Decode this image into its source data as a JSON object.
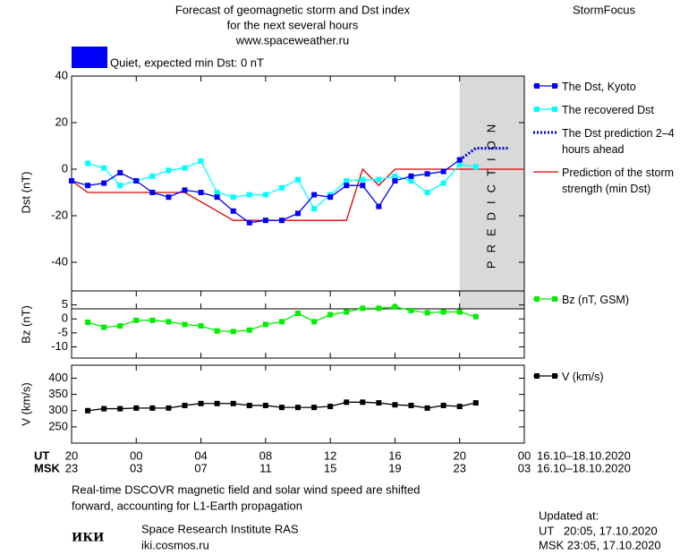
{
  "header": {
    "title_lines": [
      "Forecast of geomagnetic storm and Dst index",
      "for the next several hours",
      "www.spaceweather.ru"
    ],
    "brand": "StormFocus"
  },
  "status": {
    "color": "#0000ff",
    "text": "Quiet, expected min Dst: 0 nT"
  },
  "chart_data": [
    {
      "type": "line",
      "ylabel": "Dst (nT)",
      "ylim": [
        -60,
        40
      ],
      "yticks": [
        -40,
        -20,
        0,
        20,
        40
      ],
      "prediction_zone": {
        "x": [
          24,
          28
        ],
        "label": "PREDICTION"
      },
      "series": [
        {
          "name": "The Dst, Kyoto",
          "color": "#0000ff",
          "marker": "square",
          "x": [
            0,
            1,
            2,
            3,
            4,
            5,
            6,
            7,
            8,
            9,
            10,
            11,
            12,
            13,
            14,
            15,
            16,
            17,
            18,
            19,
            20,
            21,
            22,
            23,
            24
          ],
          "values": [
            -5,
            -7,
            -6,
            -1.5,
            -5,
            -10,
            -12,
            -9,
            -10,
            -12,
            -18,
            -23,
            -22,
            -22,
            -19,
            -11,
            -12,
            -7,
            -7,
            -16,
            -5,
            -3,
            -2,
            -1,
            4
          ]
        },
        {
          "name": "The recovered Dst",
          "color": "#00ffff",
          "marker": "square",
          "x": [
            1,
            2,
            3,
            4,
            5,
            6,
            7,
            8,
            9,
            10,
            11,
            12,
            13,
            14,
            15,
            16,
            17,
            18,
            19,
            20,
            21,
            22,
            23,
            24,
            25
          ],
          "values": [
            2.5,
            0.5,
            -7,
            -5,
            -3,
            -0.5,
            0.5,
            3.5,
            -10,
            -12,
            -11,
            -11,
            -8,
            -4.5,
            -17,
            -11,
            -5,
            -4.5,
            -4.5,
            -3,
            -5,
            -10,
            -6,
            2,
            1
          ]
        },
        {
          "name": "The Dst prediction 2–4 hours ahead",
          "color": "#0000cc",
          "dash": "2,2",
          "x": [
            24,
            25,
            26,
            27
          ],
          "values": [
            4,
            9,
            9,
            9
          ]
        },
        {
          "name": "Prediction of the storm strength (min Dst)",
          "color": "#dd0000",
          "x": [
            0,
            1,
            7,
            8,
            9,
            10,
            17,
            18,
            19,
            20,
            28
          ],
          "values": [
            -5,
            -10,
            -10,
            -14,
            -18,
            -22,
            -22,
            0,
            -7,
            0,
            0
          ]
        }
      ]
    },
    {
      "type": "line",
      "ylabel": "Bz (nT)",
      "ylim": [
        -14,
        10
      ],
      "yticks": [
        -10,
        -5,
        0,
        5
      ],
      "series": [
        {
          "name": "Bz (nT, GSM)",
          "color": "#00ee00",
          "marker": "square",
          "x": [
            1,
            2,
            3,
            4,
            5,
            6,
            7,
            8,
            9,
            10,
            11,
            12,
            13,
            14,
            15,
            16,
            17,
            18,
            19,
            20,
            21,
            22,
            23,
            24,
            25
          ],
          "values": [
            -1.2,
            -3,
            -2.5,
            -0.5,
            -0.5,
            -1,
            -2,
            -2.5,
            -4.3,
            -4.5,
            -4,
            -2,
            -1,
            2,
            -1,
            1.5,
            2.5,
            3.8,
            3.8,
            4.3,
            3,
            2.2,
            2.5,
            2.5,
            0.8
          ]
        }
      ]
    },
    {
      "type": "line",
      "ylabel": "V (km/s)",
      "ylim": [
        200,
        440
      ],
      "yticks": [
        250,
        300,
        350,
        400
      ],
      "xlim": [
        0,
        28
      ],
      "xticks": [
        {
          "value": 0,
          "label": "20"
        },
        {
          "value": 4,
          "label": "00"
        },
        {
          "value": 8,
          "label": "04"
        },
        {
          "value": 12,
          "label": "08"
        },
        {
          "value": 16,
          "label": "12"
        },
        {
          "value": 20,
          "label": "16"
        },
        {
          "value": 24,
          "label": "20"
        },
        {
          "value": 28,
          "label": "00"
        }
      ],
      "xtick_labels_msk": [
        "23",
        "03",
        "07",
        "11",
        "15",
        "19",
        "23",
        "03"
      ],
      "row_labels": [
        "UT",
        "MSK"
      ],
      "date_range": [
        "16.10–18.10.2020",
        "16.10–18.10.2020"
      ],
      "series": [
        {
          "name": "V (km/s)",
          "color": "#000000",
          "marker": "square",
          "x": [
            1,
            2,
            3,
            4,
            5,
            6,
            7,
            8,
            9,
            10,
            11,
            12,
            13,
            14,
            15,
            16,
            17,
            18,
            19,
            20,
            21,
            22,
            23,
            24,
            25
          ],
          "values": [
            300,
            306,
            306,
            308,
            308,
            308,
            316,
            322,
            322,
            322,
            316,
            316,
            310,
            310,
            310,
            313,
            326,
            326,
            324,
            318,
            316,
            308,
            316,
            313,
            324
          ]
        }
      ]
    }
  ],
  "footer": {
    "note": [
      "Real-time DSCOVR magnetic field and solar wind speed are shifted",
      "forward, accounting for L1-Earth propagation"
    ],
    "logo": "ИКИ",
    "institute": "Space Research Institute RAS",
    "site": "iki.cosmos.ru",
    "updated_label": "Updated at:",
    "updated_ut": "UT   20:05, 17.10.2020",
    "updated_msk": "MSK 23:05, 17.10.2020"
  }
}
